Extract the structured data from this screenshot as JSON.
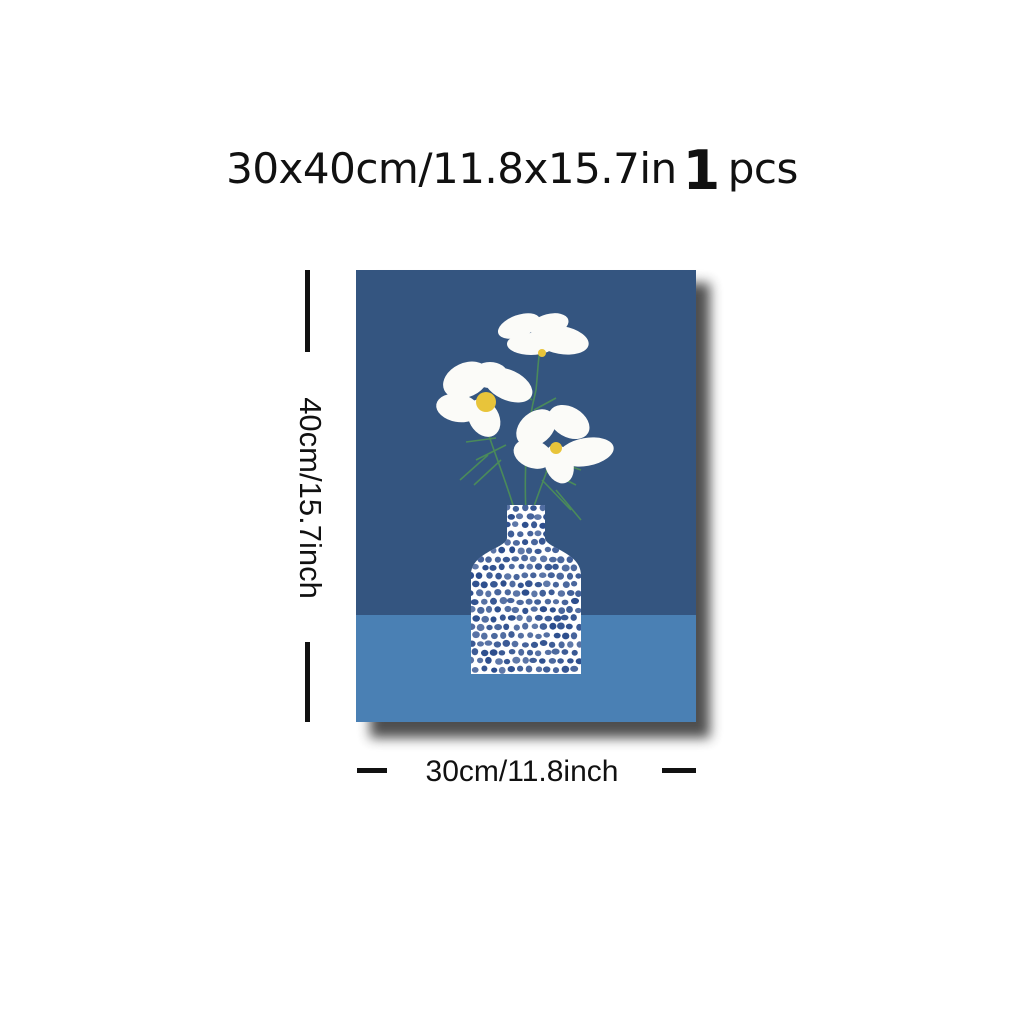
{
  "heading": {
    "size_text": "30x40cm/11.8x15.7in",
    "quantity_number": "1",
    "quantity_unit": "pcs"
  },
  "dimensions": {
    "height_label": "40cm/15.7inch",
    "width_label": "30cm/11.8inch"
  },
  "artwork": {
    "subject": "white flowers in a dotted blue vase",
    "colors": {
      "wall": "#345580",
      "table": "#4a80b4",
      "petal": "#fbfbf8",
      "flower_center": "#e8c43a",
      "stem": "#4a8a5a",
      "vase_base": "#ffffff",
      "vase_dots": "#2a4c8c"
    }
  }
}
